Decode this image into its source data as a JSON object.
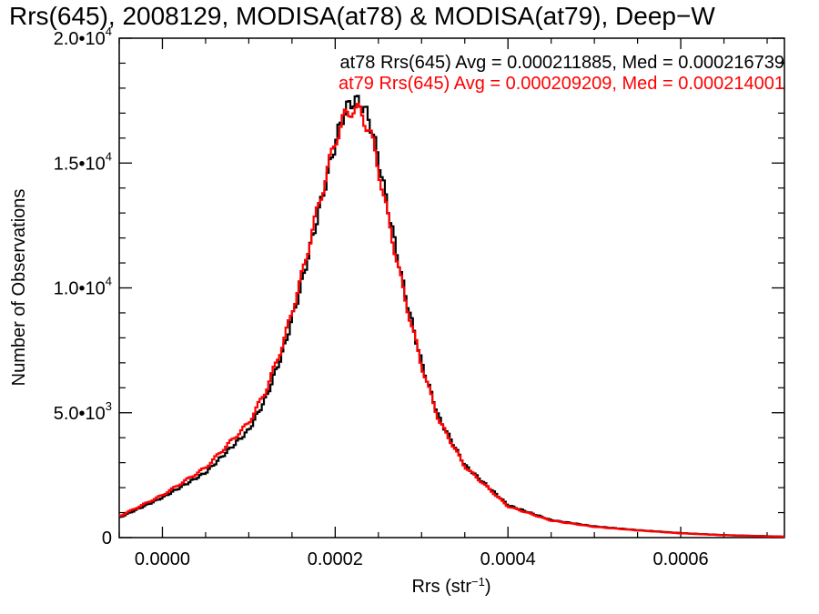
{
  "chart_data": {
    "type": "line",
    "title": "Rrs(645), 2008129, MODISA(at78) & MODISA(at79), Deep−W",
    "xlabel": "Rrs (str⁻¹)",
    "ylabel": "Number of Observations",
    "xlim": [
      -5e-05,
      0.00072
    ],
    "ylim": [
      0,
      20000
    ],
    "x_ticks": [
      0.0,
      0.0002,
      0.0004,
      0.0006
    ],
    "x_tick_labels": [
      "0.0000",
      "0.0002",
      "0.0004",
      "0.0006"
    ],
    "y_ticks": [
      0,
      5000,
      10000,
      15000,
      20000
    ],
    "y_tick_labels": [
      {
        "mantissa": "0",
        "exp": ""
      },
      {
        "mantissa": "5.0•10",
        "exp": "3"
      },
      {
        "mantissa": "1.0•10",
        "exp": "4"
      },
      {
        "mantissa": "1.5•10",
        "exp": "4"
      },
      {
        "mantissa": "2.0•10",
        "exp": "4"
      }
    ],
    "grid": false,
    "series": [
      {
        "name": "at78 Rrs(645) Avg = 0.000211885, Med = 0.000216739",
        "color": "#000000",
        "x": [
          -5e-05,
          0.0,
          5e-05,
          0.0001,
          0.00012,
          0.00014,
          0.00016,
          0.00018,
          0.0002,
          0.00021,
          0.00022,
          0.00023,
          0.00024,
          0.00025,
          0.00026,
          0.00028,
          0.0003,
          0.00032,
          0.00035,
          0.0004,
          0.00045,
          0.0005,
          0.00055,
          0.0006,
          0.00065,
          0.00072
        ],
        "y": [
          800,
          1600,
          2600,
          4300,
          5600,
          7500,
          10000,
          12900,
          15800,
          17000,
          17500,
          17400,
          16700,
          15200,
          13400,
          9900,
          7000,
          4800,
          2900,
          1300,
          700,
          450,
          300,
          180,
          100,
          40
        ]
      },
      {
        "name": "at79 Rrs(645) Avg = 0.000209209, Med = 0.000214001",
        "color": "#ff0000",
        "x": [
          -5e-05,
          0.0,
          5e-05,
          0.0001,
          0.00012,
          0.00014,
          0.00016,
          0.00018,
          0.0002,
          0.00021,
          0.00022,
          0.00023,
          0.00024,
          0.00025,
          0.00026,
          0.00028,
          0.0003,
          0.00032,
          0.00035,
          0.0004,
          0.00045,
          0.0005,
          0.00055,
          0.0006,
          0.00065,
          0.00072
        ],
        "y": [
          850,
          1700,
          2800,
          4600,
          5900,
          7800,
          10300,
          13200,
          15900,
          16800,
          17200,
          17000,
          16300,
          14800,
          13000,
          9700,
          6900,
          4700,
          2850,
          1250,
          680,
          430,
          290,
          170,
          95,
          35
        ]
      }
    ]
  }
}
